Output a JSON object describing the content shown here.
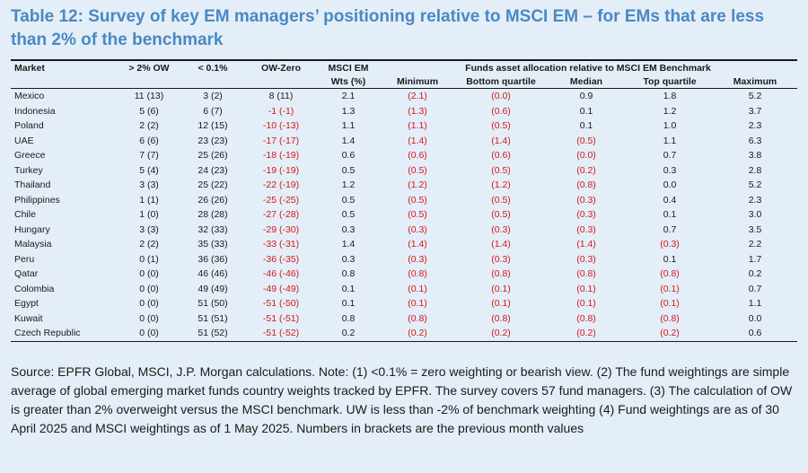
{
  "title": "Table 12: Survey of key EM managers’ positioning relative to MSCI EM – for EMs that are less than 2% of the benchmark",
  "columns": {
    "market": "Market",
    "ow": "> 2% OW",
    "lt01": "< 0.1%",
    "owzero": "OW-Zero",
    "msci1": "MSCI EM",
    "msci2": "Wts (%)",
    "group": "Funds asset allocation relative to MSCI EM Benchmark",
    "min": "Minimum",
    "bq": "Bottom quartile",
    "median": "Median",
    "tq": "Top quartile",
    "max": "Maximum"
  },
  "rows": [
    {
      "market": "Mexico",
      "ow": "11 (13)",
      "lt01": "3 (2)",
      "owzero": "8 (11)",
      "msci": "2.1",
      "min": "(2.1)",
      "bq": "(0.0)",
      "median": "0.9",
      "tq": "1.8",
      "max": "5.2"
    },
    {
      "market": "Indonesia",
      "ow": "5 (6)",
      "lt01": "6 (7)",
      "owzero": "-1 (-1)",
      "msci": "1.3",
      "min": "(1.3)",
      "bq": "(0.6)",
      "median": "0.1",
      "tq": "1.2",
      "max": "3.7"
    },
    {
      "market": "Poland",
      "ow": "2 (2)",
      "lt01": "12 (15)",
      "owzero": "-10 (-13)",
      "msci": "1.1",
      "min": "(1.1)",
      "bq": "(0.5)",
      "median": "0.1",
      "tq": "1.0",
      "max": "2.3"
    },
    {
      "market": "UAE",
      "ow": "6 (6)",
      "lt01": "23 (23)",
      "owzero": "-17 (-17)",
      "msci": "1.4",
      "min": "(1.4)",
      "bq": "(1.4)",
      "median": "(0.5)",
      "tq": "1.1",
      "max": "6.3"
    },
    {
      "market": "Greece",
      "ow": "7 (7)",
      "lt01": "25 (26)",
      "owzero": "-18 (-19)",
      "msci": "0.6",
      "min": "(0.6)",
      "bq": "(0.6)",
      "median": "(0.0)",
      "tq": "0.7",
      "max": "3.8"
    },
    {
      "market": "Turkey",
      "ow": "5 (4)",
      "lt01": "24 (23)",
      "owzero": "-19 (-19)",
      "msci": "0.5",
      "min": "(0.5)",
      "bq": "(0.5)",
      "median": "(0.2)",
      "tq": "0.3",
      "max": "2.8"
    },
    {
      "market": "Thailand",
      "ow": "3 (3)",
      "lt01": "25 (22)",
      "owzero": "-22 (-19)",
      "msci": "1.2",
      "min": "(1.2)",
      "bq": "(1.2)",
      "median": "(0.8)",
      "tq": "0.0",
      "max": "5.2"
    },
    {
      "market": "Philippines",
      "ow": "1 (1)",
      "lt01": "26 (26)",
      "owzero": "-25 (-25)",
      "msci": "0.5",
      "min": "(0.5)",
      "bq": "(0.5)",
      "median": "(0.3)",
      "tq": "0.4",
      "max": "2.3"
    },
    {
      "market": "Chile",
      "ow": "1 (0)",
      "lt01": "28 (28)",
      "owzero": "-27 (-28)",
      "msci": "0.5",
      "min": "(0.5)",
      "bq": "(0.5)",
      "median": "(0.3)",
      "tq": "0.1",
      "max": "3.0"
    },
    {
      "market": "Hungary",
      "ow": "3 (3)",
      "lt01": "32 (33)",
      "owzero": "-29 (-30)",
      "msci": "0.3",
      "min": "(0.3)",
      "bq": "(0.3)",
      "median": "(0.3)",
      "tq": "0.7",
      "max": "3.5"
    },
    {
      "market": "Malaysia",
      "ow": "2 (2)",
      "lt01": "35 (33)",
      "owzero": "-33 (-31)",
      "msci": "1.4",
      "min": "(1.4)",
      "bq": "(1.4)",
      "median": "(1.4)",
      "tq": "(0.3)",
      "max": "2.2"
    },
    {
      "market": "Peru",
      "ow": "0 (1)",
      "lt01": "36 (36)",
      "owzero": "-36 (-35)",
      "msci": "0.3",
      "min": "(0.3)",
      "bq": "(0.3)",
      "median": "(0.3)",
      "tq": "0.1",
      "max": "1.7"
    },
    {
      "market": "Qatar",
      "ow": "0 (0)",
      "lt01": "46 (46)",
      "owzero": "-46 (-46)",
      "msci": "0.8",
      "min": "(0.8)",
      "bq": "(0.8)",
      "median": "(0.8)",
      "tq": "(0.8)",
      "max": "0.2"
    },
    {
      "market": "Colombia",
      "ow": "0 (0)",
      "lt01": "49 (49)",
      "owzero": "-49 (-49)",
      "msci": "0.1",
      "min": "(0.1)",
      "bq": "(0.1)",
      "median": "(0.1)",
      "tq": "(0.1)",
      "max": "0.7"
    },
    {
      "market": "Egypt",
      "ow": "0 (0)",
      "lt01": "51 (50)",
      "owzero": "-51 (-50)",
      "msci": "0.1",
      "min": "(0.1)",
      "bq": "(0.1)",
      "median": "(0.1)",
      "tq": "(0.1)",
      "max": "1.1"
    },
    {
      "market": "Kuwait",
      "ow": "0 (0)",
      "lt01": "51 (51)",
      "owzero": "-51 (-51)",
      "msci": "0.8",
      "min": "(0.8)",
      "bq": "(0.8)",
      "median": "(0.8)",
      "tq": "(0.8)",
      "max": "0.0"
    },
    {
      "market": "Czech Republic",
      "ow": "0 (0)",
      "lt01": "51 (52)",
      "owzero": "-51 (-52)",
      "msci": "0.2",
      "min": "(0.2)",
      "bq": "(0.2)",
      "median": "(0.2)",
      "tq": "(0.2)",
      "max": "0.6"
    }
  ],
  "source": "Source: EPFR Global, MSCI, J.P. Morgan calculations. Note: (1) <0.1% = zero weighting or bearish view. (2) The fund weightings are simple average of global emerging market funds country weights tracked by EPFR. The survey covers 57 fund managers. (3) The calculation of OW is greater than 2% overweight versus the MSCI benchmark. UW is less than -2% of benchmark weighting (4) Fund weightings are as of 30 April 2025 and MSCI weightings as of 1 May 2025. Numbers in brackets are the previous month values",
  "colors": {
    "title": "#4a88c2",
    "negative": "#d0191b",
    "background": "#e4eef8"
  }
}
